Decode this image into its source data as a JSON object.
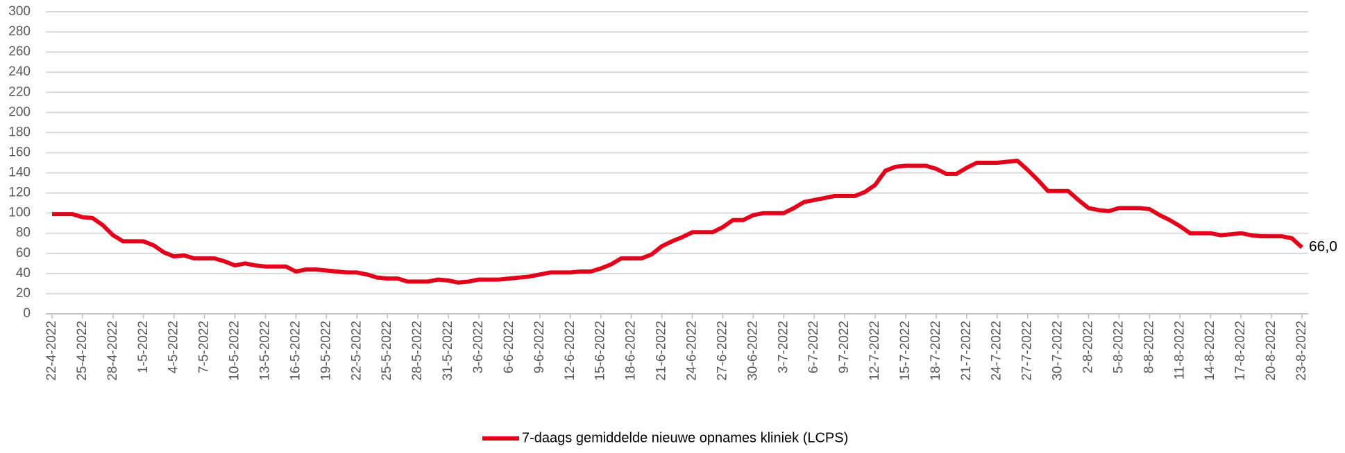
{
  "chart_data": {
    "type": "line",
    "categories": [
      "22-4-2022",
      null,
      null,
      "25-4-2022",
      null,
      null,
      "28-4-2022",
      null,
      null,
      "1-5-2022",
      null,
      null,
      "4-5-2022",
      null,
      null,
      "7-5-2022",
      null,
      null,
      "10-5-2022",
      null,
      null,
      "13-5-2022",
      null,
      null,
      "16-5-2022",
      null,
      null,
      "19-5-2022",
      null,
      null,
      "22-5-2022",
      null,
      null,
      "25-5-2022",
      null,
      null,
      "28-5-2022",
      null,
      null,
      "31-5-2022",
      null,
      null,
      "3-6-2022",
      null,
      null,
      "6-6-2022",
      null,
      null,
      "9-6-2022",
      null,
      null,
      "12-6-2022",
      null,
      null,
      "15-6-2022",
      null,
      null,
      "18-6-2022",
      null,
      null,
      "21-6-2022",
      null,
      null,
      "24-6-2022",
      null,
      null,
      "27-6-2022",
      null,
      null,
      "30-6-2022",
      null,
      null,
      "3-7-2022",
      null,
      null,
      "6-7-2022",
      null,
      null,
      "9-7-2022",
      null,
      null,
      "12-7-2022",
      null,
      null,
      "15-7-2022",
      null,
      null,
      "18-7-2022",
      null,
      null,
      "21-7-2022",
      null,
      null,
      "24-7-2022",
      null,
      null,
      "27-7-2022",
      null,
      null,
      "30-7-2022",
      null,
      null,
      "2-8-2022",
      null,
      null,
      "5-8-2022",
      null,
      null,
      "8-8-2022",
      null,
      null,
      "11-8-2022",
      null,
      null,
      "14-8-2022",
      null,
      null,
      "17-8-2022",
      null,
      null,
      "20-8-2022",
      null,
      null,
      "23-8-2022"
    ],
    "series": [
      {
        "name": "7-daags gemiddelde nieuwe opnames kliniek (LCPS)",
        "color": "#e3001b",
        "values": [
          99,
          99,
          99,
          96,
          95,
          88,
          78,
          72,
          72,
          72,
          68,
          61,
          57,
          58,
          55,
          55,
          55,
          52,
          48,
          50,
          48,
          47,
          47,
          47,
          42,
          44,
          44,
          43,
          42,
          41,
          41,
          39,
          36,
          35,
          35,
          32,
          32,
          32,
          34,
          33,
          31,
          32,
          34,
          34,
          34,
          35,
          36,
          37,
          39,
          41,
          41,
          41,
          42,
          42,
          45,
          49,
          55,
          55,
          55,
          59,
          67,
          72,
          76,
          81,
          81,
          81,
          86,
          93,
          93,
          98,
          100,
          100,
          100,
          105,
          111,
          113,
          115,
          117,
          117,
          117,
          121,
          128,
          142,
          146,
          147,
          147,
          147,
          144,
          139,
          139,
          145,
          150,
          150,
          150,
          151,
          152,
          143,
          133,
          122,
          122,
          122,
          113,
          105,
          103,
          102,
          105,
          105,
          105,
          104,
          98,
          93,
          87,
          80,
          80,
          80,
          78,
          79,
          80,
          78,
          77,
          77,
          77,
          75,
          66
        ],
        "value_labels": [
          null,
          null,
          null,
          null,
          null,
          null,
          null,
          null,
          null,
          null,
          null,
          null,
          null,
          null,
          null,
          null,
          null,
          null,
          null,
          null,
          null,
          null,
          null,
          null,
          null,
          null,
          null,
          null,
          null,
          null,
          null,
          null,
          null,
          null,
          null,
          null,
          null,
          null,
          null,
          null,
          null,
          null,
          null,
          null,
          null,
          null,
          null,
          null,
          null,
          null,
          null,
          null,
          null,
          null,
          null,
          null,
          null,
          null,
          null,
          null,
          null,
          null,
          null,
          null,
          null,
          null,
          null,
          null,
          null,
          null,
          null,
          null,
          null,
          null,
          null,
          null,
          null,
          null,
          null,
          null,
          null,
          null,
          null,
          null,
          null,
          null,
          null,
          null,
          null,
          null,
          null,
          null,
          null,
          null,
          null,
          null,
          null,
          null,
          null,
          null,
          null,
          null,
          null,
          null,
          null,
          null,
          null,
          null,
          null,
          null,
          null,
          null,
          null,
          null,
          null,
          null,
          null,
          null,
          null,
          null,
          null,
          null,
          null,
          "66,0"
        ]
      }
    ],
    "ylim": [
      0,
      300
    ],
    "yticks": [
      0,
      20,
      40,
      60,
      80,
      100,
      120,
      140,
      160,
      180,
      200,
      220,
      240,
      260,
      280,
      300
    ],
    "grid": true,
    "legend": "bottom"
  }
}
